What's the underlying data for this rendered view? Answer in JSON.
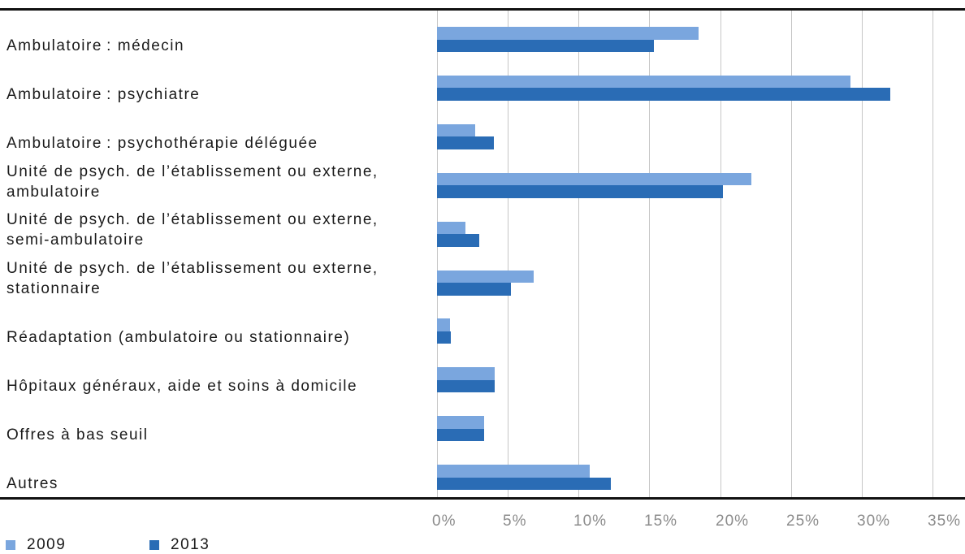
{
  "chart_data": {
    "type": "bar",
    "horizontal": true,
    "categories": [
      "Ambulatoire : médecin",
      "Ambulatoire : psychiatre",
      "Ambulatoire : psychothérapie déléguée",
      "Unité de psych. de l’établissement ou externe, ambulatoire",
      "Unité de psych. de l’établissement ou externe, semi-ambulatoire",
      "Unité de psych. de l’établissement ou externe, stationnaire",
      "Réadaptation (ambulatoire ou stationnaire)",
      "Hôpitaux généraux, aide et soins à domicile",
      "Offres à bas seuil",
      "Autres"
    ],
    "series": [
      {
        "name": "2009",
        "color": "#7aa6de",
        "values": [
          18.5,
          29.2,
          2.7,
          22.2,
          2.0,
          6.8,
          0.9,
          4.1,
          3.3,
          10.8
        ]
      },
      {
        "name": "2013",
        "color": "#2a6cb5",
        "values": [
          15.3,
          32.0,
          4.0,
          20.2,
          3.0,
          5.2,
          1.0,
          4.1,
          3.3,
          12.3
        ]
      }
    ],
    "xlim": [
      0,
      35
    ],
    "x_ticks": [
      0,
      5,
      10,
      15,
      20,
      25,
      30,
      35
    ],
    "x_tick_labels": [
      "0%",
      "5%",
      "10%",
      "15%",
      "20%",
      "25%",
      "30%",
      "35%"
    ],
    "grid": true,
    "legend_position": "bottom-left"
  }
}
